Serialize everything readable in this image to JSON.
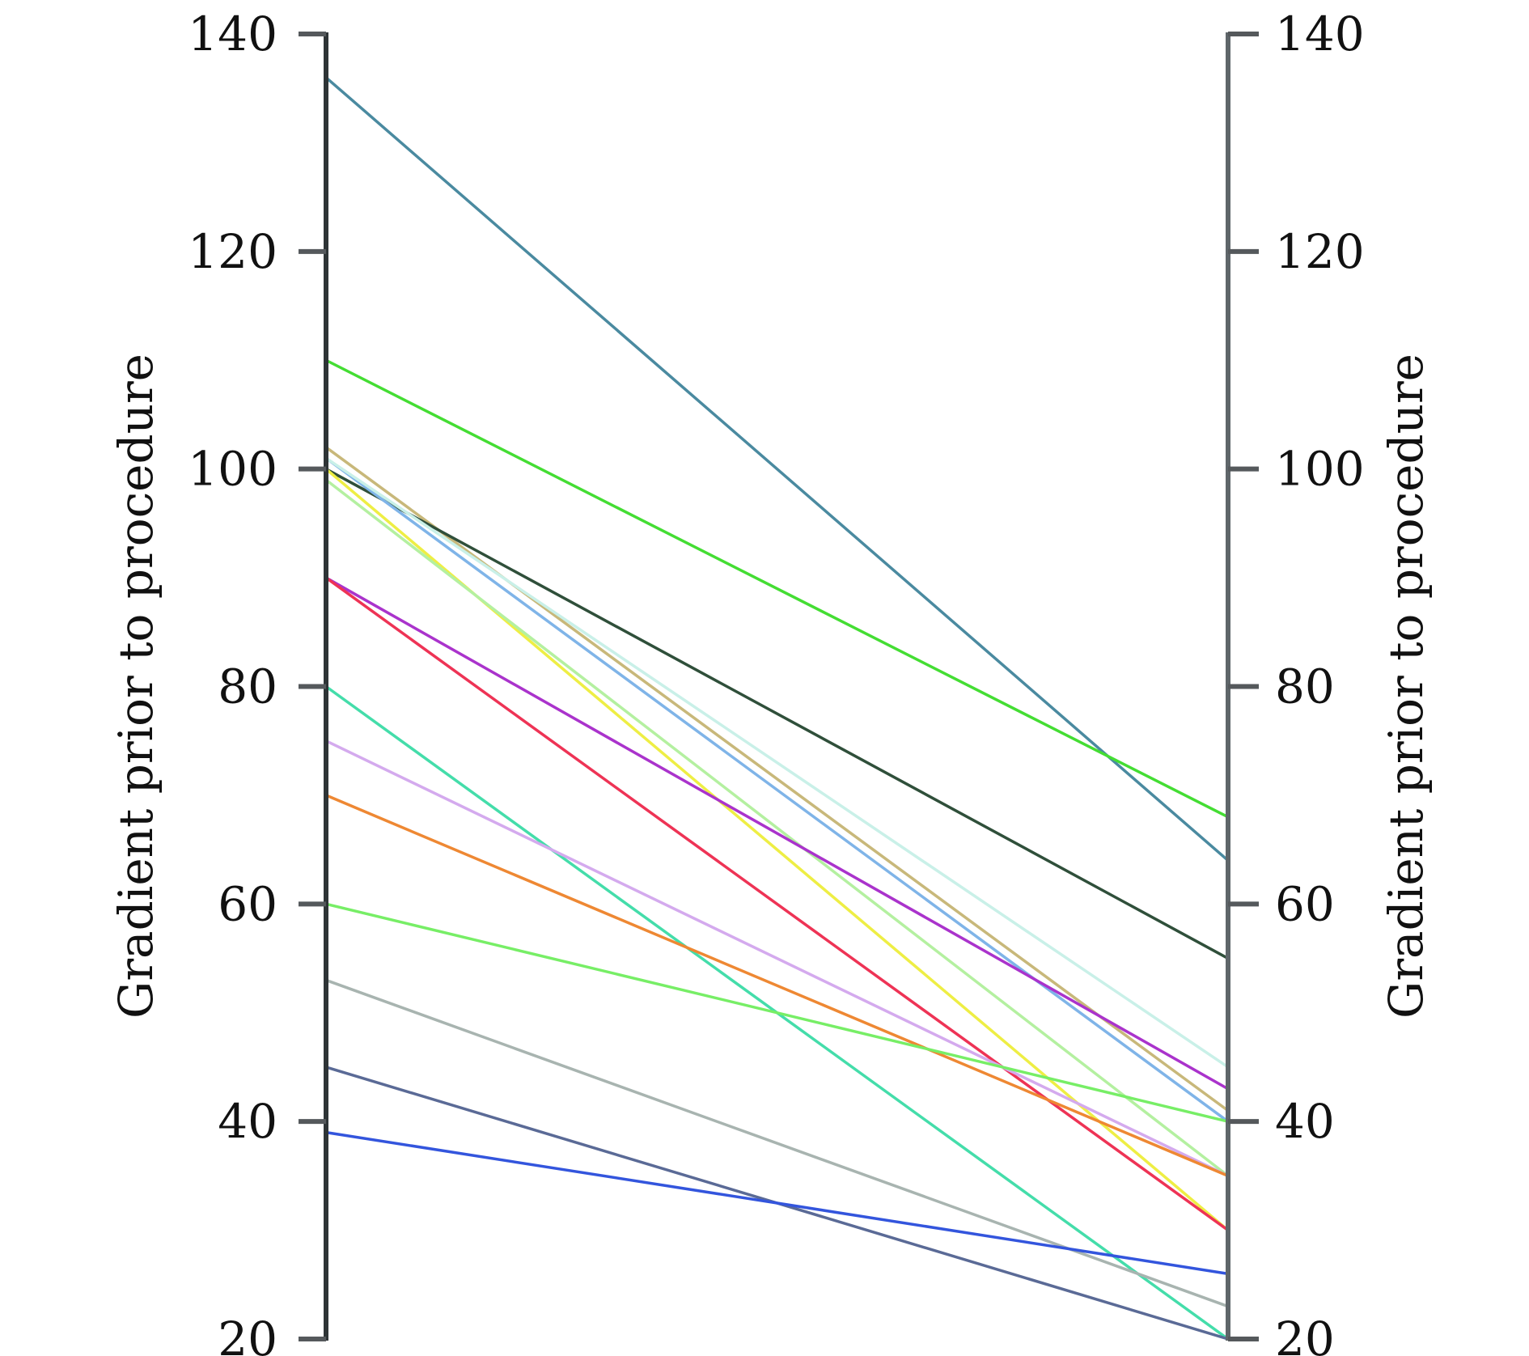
{
  "chart_data": {
    "type": "line",
    "subtype": "slopegraph",
    "left_axis": {
      "label": "Gradient prior to procedure",
      "ylim": [
        20,
        140
      ],
      "ticks": [
        "20",
        "40",
        "60",
        "80",
        "100",
        "120",
        "140"
      ]
    },
    "right_axis": {
      "label": "Gradient prior to procedure",
      "ylim": [
        20,
        140
      ],
      "ticks": [
        "20",
        "40",
        "60",
        "80",
        "100",
        "120",
        "140"
      ]
    },
    "grid": false,
    "legend": "none",
    "series": [
      {
        "color": "#4a8aa0",
        "values": [
          136,
          64
        ]
      },
      {
        "color": "#44dd33",
        "values": [
          110,
          68
        ]
      },
      {
        "color": "#c8b87a",
        "values": [
          102,
          41
        ]
      },
      {
        "color": "#2f4f3a",
        "values": [
          100,
          55
        ]
      },
      {
        "color": "#7fb4e8",
        "values": [
          101,
          40
        ]
      },
      {
        "color": "#c9f0e8",
        "values": [
          101,
          45
        ]
      },
      {
        "color": "#eeee44",
        "values": [
          100,
          30
        ]
      },
      {
        "color": "#b4f0a0",
        "values": [
          99,
          35
        ]
      },
      {
        "color": "#aa33cc",
        "values": [
          90,
          43
        ]
      },
      {
        "color": "#ee3355",
        "values": [
          90,
          30
        ]
      },
      {
        "color": "#44ddaa",
        "values": [
          80,
          20
        ]
      },
      {
        "color": "#d4aaee",
        "values": [
          75,
          35
        ]
      },
      {
        "color": "#ee8833",
        "values": [
          70,
          35
        ]
      },
      {
        "color": "#77ee66",
        "values": [
          60,
          40
        ]
      },
      {
        "color": "#a8b4b0",
        "values": [
          53,
          23
        ]
      },
      {
        "color": "#5a6a96",
        "values": [
          45,
          20
        ]
      },
      {
        "color": "#3355dd",
        "values": [
          39,
          26
        ]
      }
    ]
  }
}
